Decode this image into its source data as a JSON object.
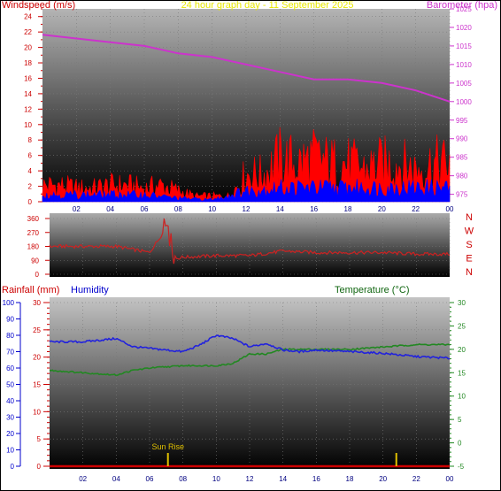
{
  "top": {
    "title": "24 hour graph day - 11 September 2025",
    "left_label": "Windspeed (m/s)",
    "right_label": "Barometer (hpa)"
  },
  "wind_dir": {
    "right_letters": [
      "N",
      "W",
      "S",
      "E",
      "N"
    ]
  },
  "bottom": {
    "rain_label": "Rainfall (mm)",
    "humidity_label": "Humidity",
    "temp_label": "Temperature (°C)",
    "sunrise_label": "Sun Rise"
  },
  "colors": {
    "windspeed": "#ff0000",
    "gust": "#ff0000",
    "average": "#0000ff",
    "barometer": "#cc33cc",
    "direction": "#cc2222",
    "humidity": "#2222dd",
    "temperature": "#228822",
    "title": "#e8e800",
    "sun": "#e0c000"
  },
  "chart_data": [
    {
      "type": "line",
      "title": "24 hour graph day - 11 September 2025",
      "x_ticks": [
        "02",
        "04",
        "06",
        "08",
        "10",
        "12",
        "14",
        "16",
        "18",
        "20",
        "22",
        "00"
      ],
      "ylabel": "Windspeed (m/s)",
      "ylim": [
        0,
        25
      ],
      "yticks": [
        0,
        2,
        4,
        6,
        8,
        10,
        12,
        14,
        16,
        18,
        20,
        22,
        24
      ],
      "y2label": "Barometer (hpa)",
      "y2lim": [
        973,
        1025
      ],
      "y2ticks": [
        975,
        980,
        985,
        990,
        995,
        1000,
        1005,
        1010,
        1015,
        1020,
        1025
      ],
      "series": [
        {
          "name": "Barometer (hpa)",
          "axis": "right",
          "x": [
            0,
            2,
            4,
            6,
            8,
            10,
            12,
            14,
            16,
            18,
            20,
            22,
            24
          ],
          "values": [
            1018,
            1017,
            1016,
            1015,
            1013,
            1012,
            1010,
            1008,
            1006,
            1006,
            1005,
            1003,
            1000
          ]
        },
        {
          "name": "Windspeed (m/s)",
          "axis": "left",
          "x": [
            0,
            1,
            2,
            3,
            4,
            5,
            6,
            7,
            8,
            9,
            10,
            11,
            12,
            13,
            14,
            15,
            16,
            17,
            18,
            19,
            20,
            21,
            22,
            23,
            24
          ],
          "values": [
            3,
            3,
            2.5,
            2.5,
            3,
            3,
            2.5,
            3,
            2,
            1,
            1,
            1,
            5,
            5,
            8,
            7,
            8,
            7,
            7,
            6,
            7,
            7,
            6,
            7,
            7
          ]
        },
        {
          "name": "Wind average",
          "axis": "left",
          "x": [
            0,
            2,
            4,
            6,
            8,
            10,
            12,
            14,
            16,
            18,
            20,
            22,
            24
          ],
          "values": [
            1,
            1,
            1,
            1,
            0.5,
            0.3,
            1.5,
            2,
            2,
            2,
            2,
            2,
            2
          ]
        }
      ]
    },
    {
      "type": "line",
      "x_ticks": [],
      "ylim": [
        0,
        360
      ],
      "yticks": [
        0,
        90,
        180,
        270,
        360
      ],
      "series": [
        {
          "name": "Wind direction",
          "x": [
            0,
            2,
            4,
            6,
            7,
            7.5,
            8,
            10,
            12,
            14,
            16,
            18,
            20,
            22,
            24
          ],
          "values": [
            180,
            180,
            180,
            140,
            300,
            100,
            110,
            120,
            120,
            150,
            140,
            140,
            140,
            130,
            130
          ]
        }
      ]
    },
    {
      "type": "line",
      "x_ticks": [
        "02",
        "04",
        "06",
        "08",
        "10",
        "12",
        "14",
        "16",
        "18",
        "20",
        "22",
        "00"
      ],
      "ylabel": "Rainfall (mm)",
      "ylim": [
        0,
        30
      ],
      "yticks": [
        0,
        5,
        10,
        15,
        20,
        25,
        30
      ],
      "y3label": "Humidity",
      "y3lim": [
        0,
        100
      ],
      "y3ticks": [
        0,
        10,
        20,
        30,
        40,
        50,
        60,
        70,
        80,
        90,
        100
      ],
      "y2label": "Temperature (°C)",
      "y2lim": [
        -5,
        30
      ],
      "y2ticks": [
        -5,
        0,
        5,
        10,
        15,
        20,
        25,
        30
      ],
      "series": [
        {
          "name": "Humidity",
          "axis": "humidity",
          "x": [
            0,
            2,
            4,
            5,
            6,
            7,
            8,
            9,
            10,
            11,
            12,
            13,
            14,
            15,
            16,
            18,
            20,
            22,
            24
          ],
          "values": [
            76,
            76,
            78,
            73,
            72,
            71,
            70,
            74,
            80,
            78,
            73,
            75,
            71,
            70,
            71,
            70,
            69,
            67,
            66
          ]
        },
        {
          "name": "Temperature (°C)",
          "axis": "right",
          "x": [
            0,
            2,
            4,
            5,
            6,
            8,
            10,
            11,
            12,
            13,
            14,
            16,
            18,
            20,
            22,
            24
          ],
          "values": [
            15.5,
            15,
            14.5,
            15.5,
            16,
            16.5,
            16.5,
            17,
            19,
            19,
            20,
            20,
            20,
            20.5,
            21,
            21
          ]
        },
        {
          "name": "Rainfall (mm)",
          "axis": "left",
          "x": [
            0,
            24
          ],
          "values": [
            0,
            0
          ]
        }
      ],
      "markers": [
        {
          "label": "Sun Rise",
          "x": 7.1
        },
        {
          "label": "",
          "x": 20.8
        }
      ]
    }
  ]
}
